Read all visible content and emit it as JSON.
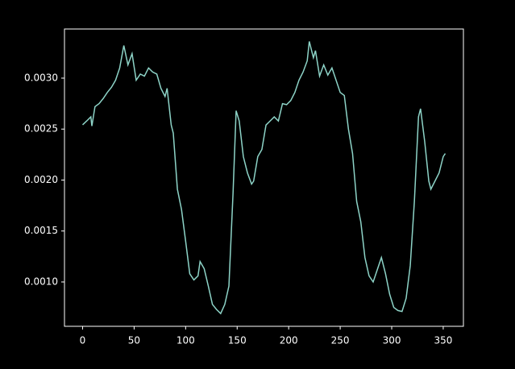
{
  "chart_data": {
    "type": "line",
    "x": [
      0,
      4,
      8,
      9,
      12,
      16,
      20,
      24,
      28,
      32,
      36,
      40,
      44,
      48,
      52,
      56,
      60,
      64,
      68,
      72,
      76,
      80,
      82,
      86,
      88,
      92,
      96,
      100,
      104,
      108,
      112,
      114,
      118,
      122,
      126,
      130,
      134,
      138,
      142,
      146,
      149,
      152,
      156,
      160,
      164,
      166,
      170,
      174,
      178,
      182,
      186,
      190,
      194,
      198,
      202,
      206,
      210,
      214,
      218,
      220,
      224,
      226,
      230,
      234,
      238,
      242,
      246,
      250,
      254,
      258,
      262,
      266,
      270,
      274,
      278,
      282,
      286,
      290,
      294,
      298,
      302,
      306,
      310,
      314,
      318,
      322,
      326,
      328,
      332,
      336,
      338,
      342,
      346,
      350,
      352
    ],
    "series": [
      {
        "color": "#8dd3c7",
        "values": [
          0.002542,
          0.00258,
          0.00262,
          0.00253,
          0.00272,
          0.00275,
          0.0028,
          0.00286,
          0.00291,
          0.00298,
          0.0031,
          0.00332,
          0.00313,
          0.00324,
          0.00298,
          0.00304,
          0.00302,
          0.0031,
          0.00306,
          0.00304,
          0.0029,
          0.00282,
          0.0029,
          0.00254,
          0.00246,
          0.00191,
          0.00171,
          0.0014,
          0.00108,
          0.00102,
          0.00106,
          0.0012,
          0.00113,
          0.00096,
          0.00078,
          0.00073,
          0.00069,
          0.00078,
          0.00096,
          0.00187,
          0.00268,
          0.00258,
          0.00223,
          0.00207,
          0.00196,
          0.00199,
          0.00223,
          0.0023,
          0.00254,
          0.00258,
          0.00262,
          0.00258,
          0.00275,
          0.00274,
          0.00278,
          0.00286,
          0.00298,
          0.00306,
          0.00317,
          0.00336,
          0.0032,
          0.00327,
          0.00302,
          0.00313,
          0.00303,
          0.0031,
          0.00298,
          0.00286,
          0.00283,
          0.0025,
          0.00226,
          0.00179,
          0.00159,
          0.00124,
          0.00106,
          0.001,
          0.00112,
          0.00124,
          0.00108,
          0.00088,
          0.00075,
          0.00072,
          0.00071,
          0.00084,
          0.00116,
          0.00179,
          0.00262,
          0.0027,
          0.00238,
          0.00199,
          0.00191,
          0.00199,
          0.00207,
          0.00223,
          0.00226
        ]
      }
    ],
    "xlim": [
      -17.6,
      369.6
    ],
    "xticks": [
      0,
      50,
      100,
      150,
      200,
      250,
      300,
      350
    ],
    "ylim": [
      0.000565,
      0.003482
    ],
    "yticks": [
      {
        "value": 0.001,
        "label": "0.0010"
      },
      {
        "value": 0.0015,
        "label": "0.0015"
      },
      {
        "value": 0.002,
        "label": "0.0020"
      },
      {
        "value": 0.0025,
        "label": "0.0025"
      },
      {
        "value": 0.003,
        "label": "0.0030"
      }
    ]
  }
}
